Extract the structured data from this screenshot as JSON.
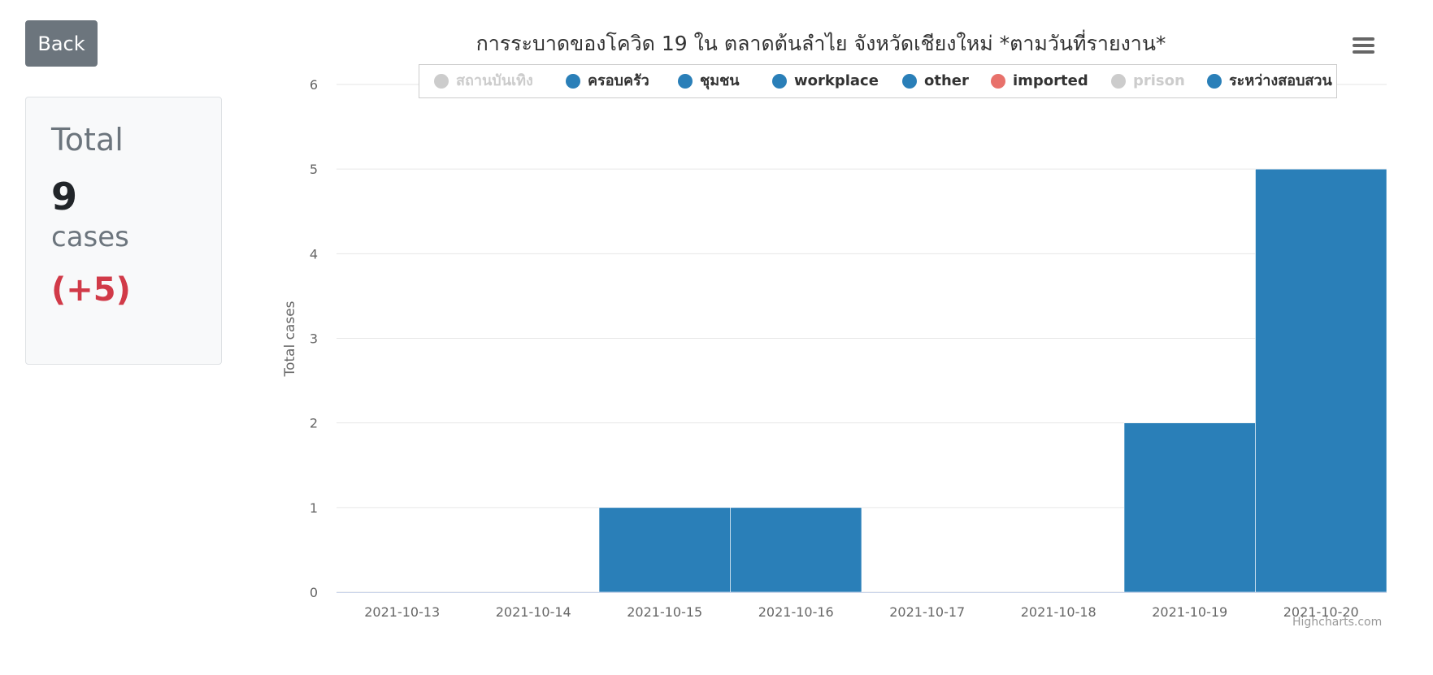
{
  "back_label": "Back",
  "total_card": {
    "label": "Total",
    "value": "9",
    "unit": "cases",
    "delta": "(+5)"
  },
  "colors": {
    "series": "#2a7fb8",
    "imported": "#e8716b",
    "hidden": "#cccccc",
    "delta": "#d13a48"
  },
  "icons": {
    "menu": "hamburger-menu-icon"
  },
  "credits": "Highcharts.com",
  "chart_data": {
    "type": "bar",
    "stacked": true,
    "title": "การระบาดของโควิด 19 ใน ตลาดต้นลำไย จังหวัดเชียงใหม่ *ตามวันที่รายงาน*",
    "ylabel": "Total cases",
    "xlabel": "",
    "ylim": [
      0,
      6
    ],
    "yticks": [
      0,
      1,
      2,
      3,
      4,
      5,
      6
    ],
    "categories": [
      "2021-10-13",
      "2021-10-14",
      "2021-10-15",
      "2021-10-16",
      "2021-10-17",
      "2021-10-18",
      "2021-10-19",
      "2021-10-20"
    ],
    "values": [
      0,
      0,
      1,
      1,
      0,
      0,
      2,
      5
    ],
    "grid": true,
    "legend_placement": "top-center",
    "legend": [
      {
        "name": "สถานบันเทิง",
        "color": "#cccccc",
        "visible": false
      },
      {
        "name": "ครอบครัว",
        "color": "#2a7fb8",
        "visible": true
      },
      {
        "name": "ชุมชน",
        "color": "#2a7fb8",
        "visible": true
      },
      {
        "name": "workplace",
        "color": "#2a7fb8",
        "visible": true
      },
      {
        "name": "other",
        "color": "#2a7fb8",
        "visible": true
      },
      {
        "name": "imported",
        "color": "#e8716b",
        "visible": true
      },
      {
        "name": "prison",
        "color": "#cccccc",
        "visible": false
      },
      {
        "name": "ระหว่างสอบสวน",
        "color": "#2a7fb8",
        "visible": true
      }
    ]
  }
}
